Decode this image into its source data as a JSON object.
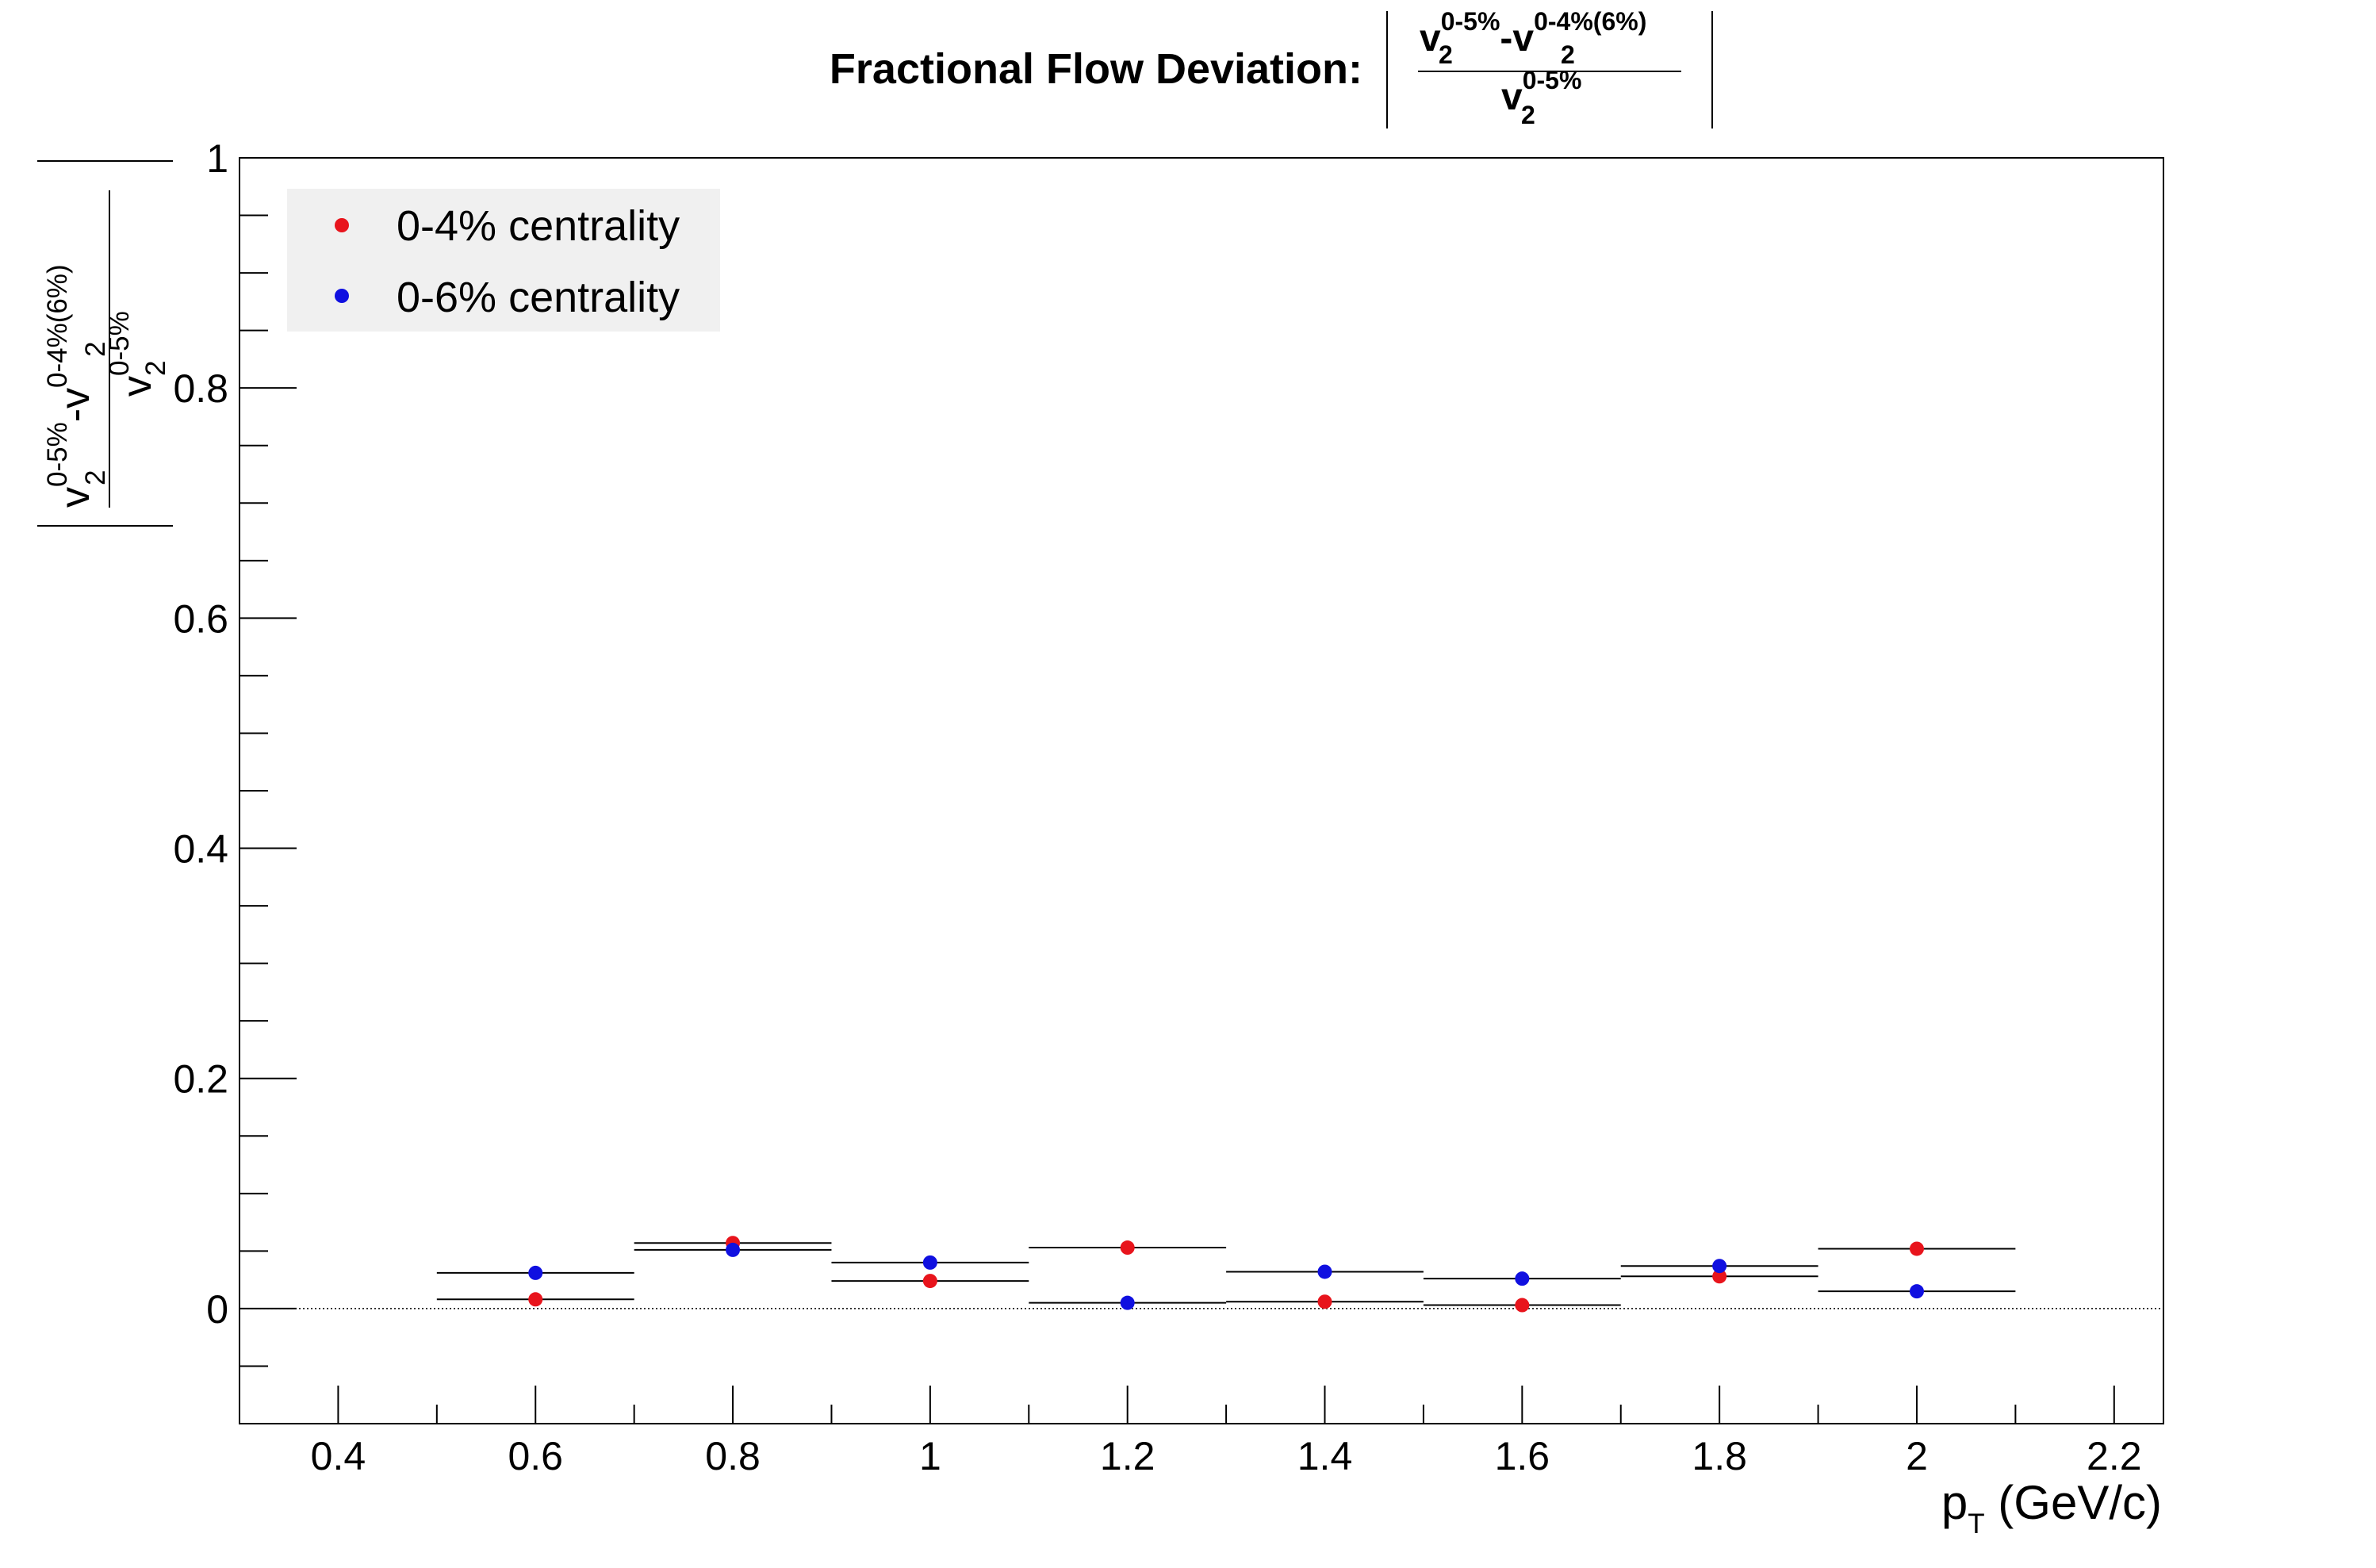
{
  "chart_data": {
    "type": "scatter",
    "title": {
      "prefix": "Fractional Flow Deviation:",
      "numerator": {
        "v1": "v",
        "v1_sup": "0-5%",
        "v1_sub": "2",
        "minus": "-",
        "v2": "v",
        "v2_sup": "0-4%(6%)",
        "v2_sub": "2"
      },
      "denominator": {
        "v": "v",
        "v_sup": "0-5%",
        "v_sub": "2"
      }
    },
    "xlabel": {
      "main": "p",
      "sub": "T",
      "unit": " (GeV/c)"
    },
    "ylabel": {
      "numerator": {
        "v1": "v",
        "v1_sup": "0-5%",
        "v1_sub": "2",
        "minus": "-",
        "v2": "v",
        "v2_sup": "0-4%(6%)",
        "v2_sub": "2"
      },
      "denominator": {
        "v": "v",
        "v_sup": "0-5%",
        "v_sub": "2"
      }
    },
    "xlim": [
      0.3,
      2.25
    ],
    "ylim": [
      -0.1,
      1.0
    ],
    "x_ticks": [
      0.4,
      0.6,
      0.8,
      1.0,
      1.2,
      1.4,
      1.6,
      1.8,
      2.0,
      2.2
    ],
    "x_tick_labels": [
      "0.4",
      "0.6",
      "0.8",
      "1",
      "1.2",
      "1.4",
      "1.6",
      "1.8",
      "2",
      "2.2"
    ],
    "y_ticks": [
      0,
      0.2,
      0.4,
      0.6,
      0.8,
      1.0
    ],
    "y_tick_labels": [
      "0",
      "0.2",
      "0.4",
      "0.6",
      "0.8",
      "1"
    ],
    "x_error": 0.1,
    "reference_line_y": 0,
    "legend_position": "top-left",
    "series": [
      {
        "name": "0-4% centrality",
        "color": "#e8141c",
        "x": [
          0.6,
          0.8,
          1.0,
          1.2,
          1.4,
          1.6,
          1.8,
          2.0
        ],
        "y": [
          0.008,
          0.057,
          0.024,
          0.053,
          0.006,
          0.003,
          0.028,
          0.052
        ]
      },
      {
        "name": "0-6% centrality",
        "color": "#1010e0",
        "x": [
          0.6,
          0.8,
          1.0,
          1.2,
          1.4,
          1.6,
          1.8,
          2.0
        ],
        "y": [
          0.031,
          0.051,
          0.04,
          0.005,
          0.032,
          0.026,
          0.037,
          0.015
        ]
      }
    ]
  }
}
